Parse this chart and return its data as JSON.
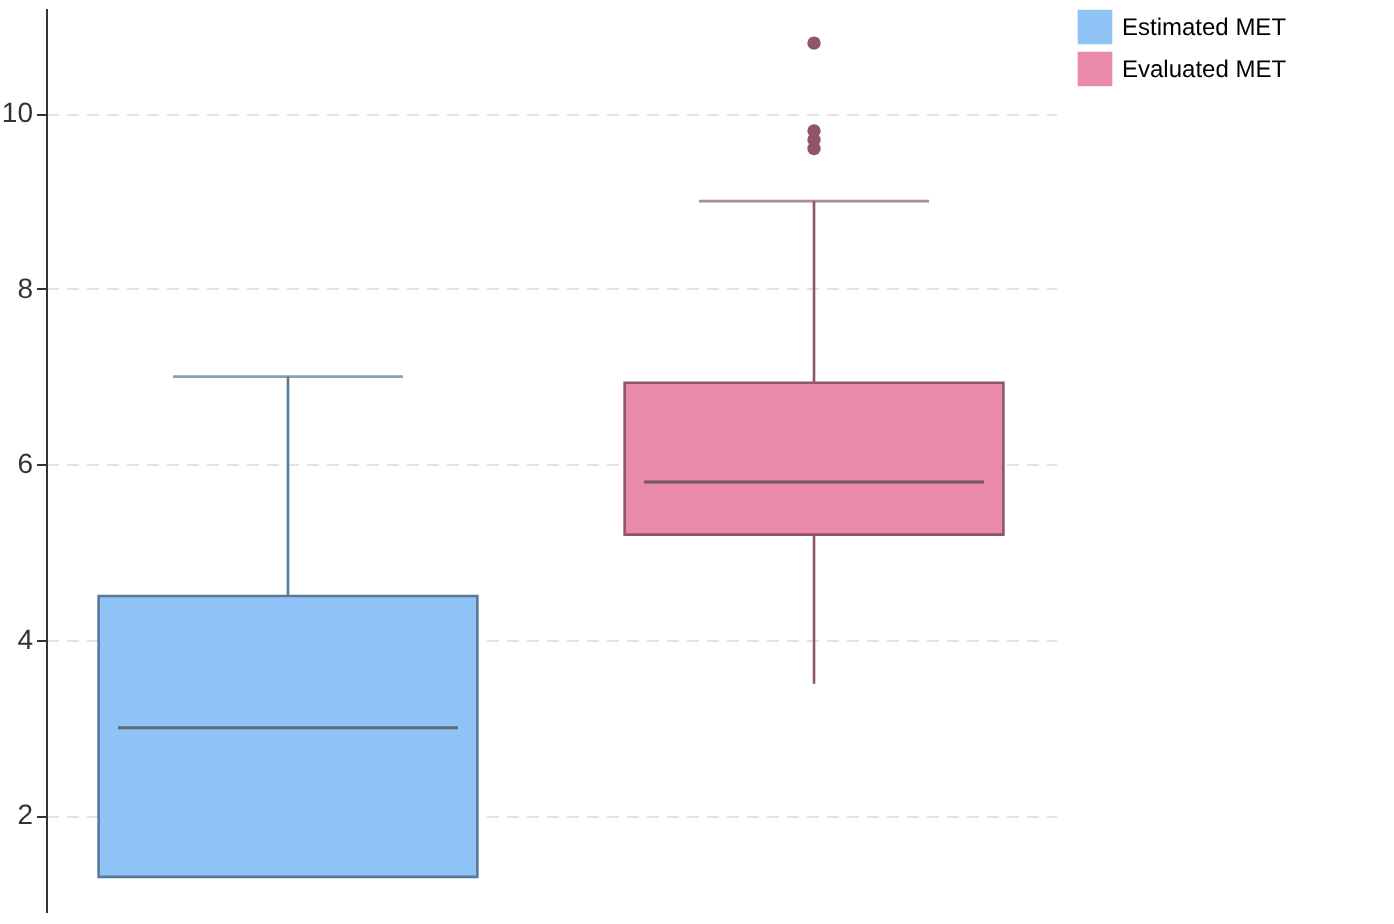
{
  "chart_data": {
    "type": "box",
    "categories": [
      null,
      null
    ],
    "series": [
      {
        "name": "Estimated MET",
        "color": "#90c3f5",
        "boxes": [
          {
            "low": 1.3,
            "q1": 1.3,
            "median": 3.0,
            "q3": 4.5,
            "high": 7.0
          },
          null
        ]
      },
      {
        "name": "Evaluated MET",
        "color": "#e88aa8",
        "boxes": [
          null,
          {
            "low": 3.5,
            "q1": 5.2,
            "median": 5.8,
            "q3": 6.93,
            "high": 9.0,
            "outliers": [
              9.6,
              9.7,
              9.8,
              10.8
            ]
          }
        ]
      }
    ],
    "ylim": [
      0.9,
      11.2
    ],
    "yticks": [
      2,
      4,
      6,
      8,
      10
    ],
    "grid": "y",
    "legend": "right"
  }
}
